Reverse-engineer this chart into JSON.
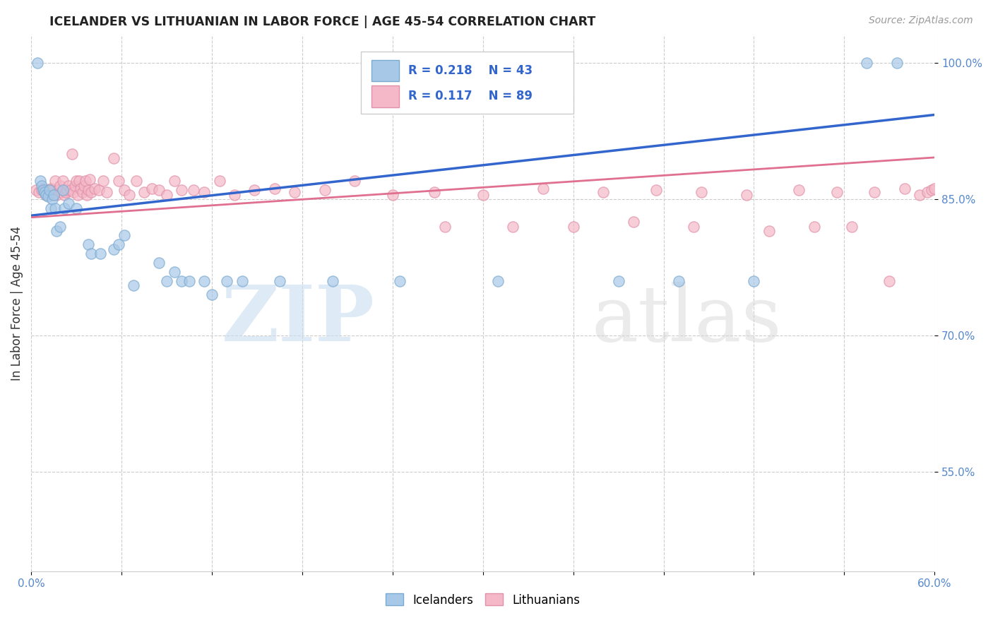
{
  "title": "ICELANDER VS LITHUANIAN IN LABOR FORCE | AGE 45-54 CORRELATION CHART",
  "source": "Source: ZipAtlas.com",
  "ylabel": "In Labor Force | Age 45-54",
  "xlim": [
    0.0,
    0.6
  ],
  "ylim": [
    0.44,
    1.03
  ],
  "xticks": [
    0.0,
    0.06,
    0.12,
    0.18,
    0.24,
    0.3,
    0.36,
    0.42,
    0.48,
    0.54,
    0.6
  ],
  "yticks": [
    0.55,
    0.7,
    0.85,
    1.0
  ],
  "yticklabels": [
    "55.0%",
    "70.0%",
    "85.0%",
    "100.0%"
  ],
  "blue_fill": "#A8C8E8",
  "blue_edge": "#7AAACF",
  "pink_fill": "#F4B8C8",
  "pink_edge": "#E090A8",
  "blue_line_color": "#3366CC",
  "pink_line_color": "#E07090",
  "tick_color": "#5588CC",
  "grid_color": "#CCCCCC",
  "icelanders_x": [
    0.004,
    0.006,
    0.007,
    0.008,
    0.009,
    0.01,
    0.011,
    0.012,
    0.013,
    0.014,
    0.015,
    0.016,
    0.017,
    0.019,
    0.021,
    0.022,
    0.025,
    0.03,
    0.038,
    0.04,
    0.046,
    0.055,
    0.058,
    0.062,
    0.068,
    0.085,
    0.09,
    0.095,
    0.1,
    0.105,
    0.115,
    0.12,
    0.13,
    0.14,
    0.165,
    0.2,
    0.245,
    0.31,
    0.39,
    0.43,
    0.48,
    0.555,
    0.575
  ],
  "icelanders_y": [
    1.0,
    0.87,
    0.865,
    0.86,
    0.858,
    0.855,
    0.853,
    0.86,
    0.84,
    0.85,
    0.855,
    0.84,
    0.815,
    0.82,
    0.86,
    0.84,
    0.845,
    0.84,
    0.8,
    0.79,
    0.79,
    0.795,
    0.8,
    0.81,
    0.755,
    0.78,
    0.76,
    0.77,
    0.76,
    0.76,
    0.76,
    0.745,
    0.76,
    0.76,
    0.76,
    0.76,
    0.76,
    0.76,
    0.76,
    0.76,
    0.76,
    1.0,
    1.0
  ],
  "lithuanians_x": [
    0.003,
    0.005,
    0.007,
    0.008,
    0.009,
    0.01,
    0.011,
    0.012,
    0.013,
    0.014,
    0.015,
    0.016,
    0.017,
    0.018,
    0.019,
    0.02,
    0.021,
    0.022,
    0.023,
    0.024,
    0.025,
    0.026,
    0.027,
    0.028,
    0.029,
    0.03,
    0.031,
    0.032,
    0.033,
    0.034,
    0.035,
    0.036,
    0.037,
    0.038,
    0.039,
    0.04,
    0.042,
    0.045,
    0.048,
    0.05,
    0.055,
    0.058,
    0.062,
    0.065,
    0.07,
    0.075,
    0.08,
    0.085,
    0.09,
    0.095,
    0.1,
    0.108,
    0.115,
    0.125,
    0.135,
    0.148,
    0.162,
    0.175,
    0.195,
    0.215,
    0.24,
    0.268,
    0.3,
    0.34,
    0.38,
    0.415,
    0.445,
    0.475,
    0.51,
    0.535,
    0.56,
    0.58,
    0.59,
    0.595,
    0.598,
    0.6,
    0.275,
    0.32,
    0.36,
    0.4,
    0.44,
    0.49,
    0.52,
    0.545,
    0.57
  ],
  "lithuanians_y": [
    0.86,
    0.858,
    0.86,
    0.862,
    0.858,
    0.855,
    0.86,
    0.858,
    0.862,
    0.86,
    0.855,
    0.87,
    0.855,
    0.86,
    0.865,
    0.858,
    0.87,
    0.855,
    0.858,
    0.86,
    0.865,
    0.86,
    0.9,
    0.858,
    0.865,
    0.87,
    0.855,
    0.87,
    0.862,
    0.858,
    0.865,
    0.87,
    0.855,
    0.86,
    0.872,
    0.858,
    0.862,
    0.86,
    0.87,
    0.858,
    0.895,
    0.87,
    0.86,
    0.855,
    0.87,
    0.858,
    0.862,
    0.86,
    0.855,
    0.87,
    0.86,
    0.86,
    0.858,
    0.87,
    0.855,
    0.86,
    0.862,
    0.858,
    0.86,
    0.87,
    0.855,
    0.858,
    0.855,
    0.862,
    0.858,
    0.86,
    0.858,
    0.855,
    0.86,
    0.858,
    0.858,
    0.862,
    0.855,
    0.858,
    0.86,
    0.862,
    0.82,
    0.82,
    0.82,
    0.825,
    0.82,
    0.815,
    0.82,
    0.82,
    0.76
  ],
  "blue_line_x0": 0.0,
  "blue_line_y0": 0.832,
  "blue_line_x1": 0.6,
  "blue_line_y1": 0.943,
  "pink_line_x0": 0.0,
  "pink_line_y0": 0.83,
  "pink_line_x1": 0.6,
  "pink_line_y1": 0.896
}
